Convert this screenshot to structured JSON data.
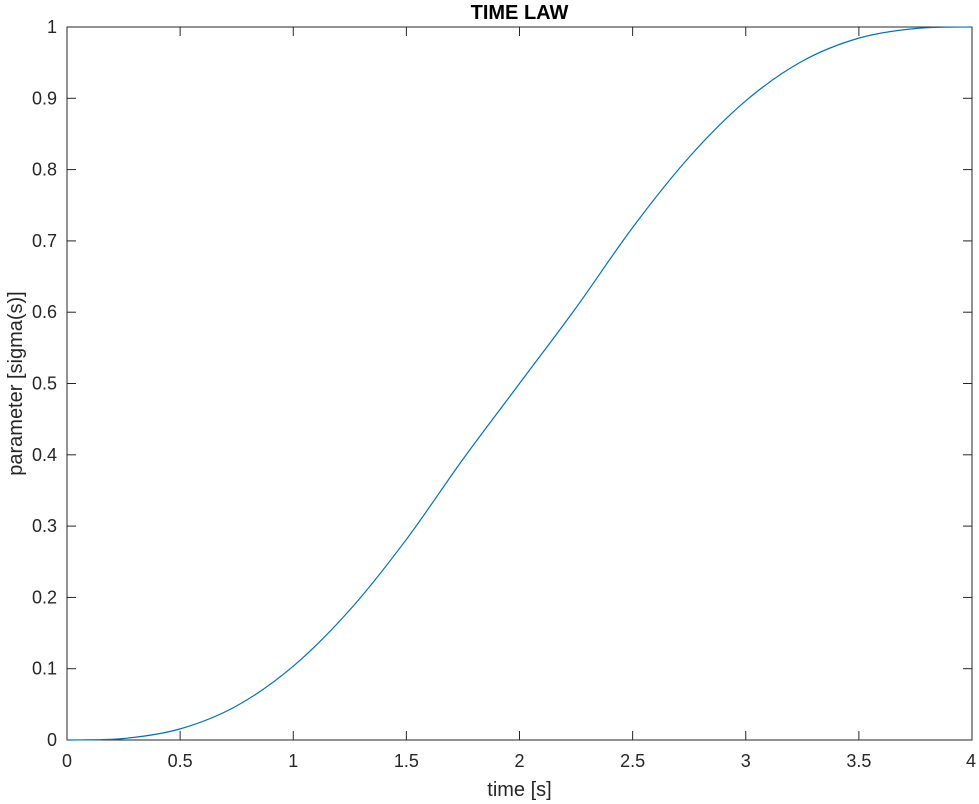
{
  "chart_data": {
    "type": "line",
    "title": "TIME LAW",
    "xlabel": "time [s]",
    "ylabel": "parameter [sigma(s)]",
    "xlim": [
      0,
      4
    ],
    "ylim": [
      0,
      1
    ],
    "xticks": [
      0,
      0.5,
      1,
      1.5,
      2,
      2.5,
      3,
      3.5,
      4
    ],
    "xtick_labels": [
      "0",
      "0.5",
      "1",
      "1.5",
      "2",
      "2.5",
      "3",
      "3.5",
      "4"
    ],
    "yticks": [
      0,
      0.1,
      0.2,
      0.3,
      0.4,
      0.5,
      0.6,
      0.7,
      0.8,
      0.9,
      1
    ],
    "ytick_labels": [
      "0",
      "0.1",
      "0.2",
      "0.3",
      "0.4",
      "0.5",
      "0.6",
      "0.7",
      "0.8",
      "0.9",
      "1"
    ],
    "grid": false,
    "line_color": "#0072BD",
    "series": [
      {
        "x": [
          0,
          0.25,
          0.5,
          0.75,
          1,
          1.25,
          1.5,
          1.75,
          2,
          2.25,
          2.5,
          2.75,
          3,
          3.25,
          3.5,
          3.75,
          4
        ],
        "values": [
          0,
          0.0021,
          0.0156,
          0.0479,
          0.1035,
          0.1825,
          0.2813,
          0.3938,
          0.5,
          0.6062,
          0.7188,
          0.8175,
          0.8965,
          0.9521,
          0.9844,
          0.9979,
          1
        ]
      }
    ]
  }
}
